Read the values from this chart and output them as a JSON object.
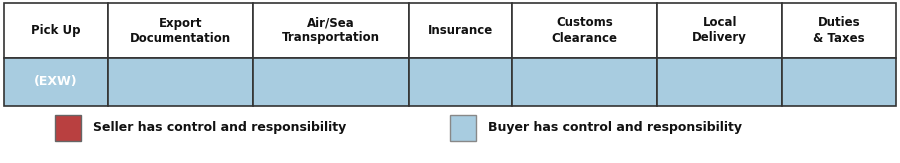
{
  "columns": [
    "Pick Up",
    "Export\nDocumentation",
    "Air/Sea\nTransportation",
    "Insurance",
    "Customs\nClearance",
    "Local\nDelivery",
    "Duties\n& Taxes"
  ],
  "col_widths": [
    1.0,
    1.4,
    1.5,
    1.0,
    1.4,
    1.2,
    1.1
  ],
  "row_label": "(EXW)",
  "seller_color": "#b94040",
  "buyer_color": "#a8cce0",
  "seller_cols": [],
  "buyer_cols": [
    0,
    1,
    2,
    3,
    4,
    5,
    6
  ],
  "header_fontsize": 8.5,
  "label_fontsize": 9,
  "legend_fontsize": 9,
  "background_color": "#ffffff",
  "border_color": "#333333",
  "seller_legend_color": "#b94040",
  "buyer_legend_color": "#a8cce0",
  "seller_legend_label": "Seller has control and responsibility",
  "buyer_legend_label": "Buyer has control and responsibility",
  "fig_width": 9.0,
  "fig_height": 1.63,
  "dpi": 100
}
